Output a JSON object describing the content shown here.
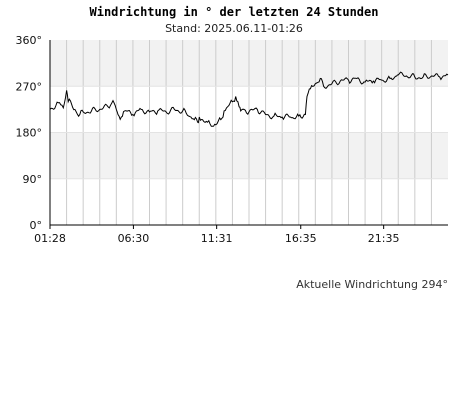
{
  "chart_data": {
    "type": "line",
    "title": "Windrichtung in ° der letzten 24 Stunden",
    "subtitle": "Stand: 2025.06.11-01:26",
    "xlabel": "",
    "ylabel": "",
    "ylim": [
      0,
      360
    ],
    "y_ticks": [
      0,
      90,
      180,
      270,
      360
    ],
    "y_tick_labels": [
      "0°",
      "90°",
      "180°",
      "270°",
      "360°"
    ],
    "x_tick_labels": [
      "01:28",
      "06:30",
      "11:31",
      "16:35",
      "21:35"
    ],
    "x_range_hours": [
      0,
      24
    ],
    "x_tick_hours": [
      0,
      5.03,
      10.05,
      15.12,
      20.12
    ],
    "grid": true,
    "series": [
      {
        "x_hours": [
          0,
          0.5,
          0.8,
          1.0,
          1.1,
          1.3,
          1.5,
          1.8,
          2.0,
          2.5,
          3.0,
          3.5,
          3.8,
          4.0,
          4.1,
          4.3,
          4.5,
          5.0,
          5.5,
          6.0,
          6.5,
          7.0,
          7.5,
          8.0,
          8.5,
          8.7,
          8.9,
          9.0,
          9.2,
          9.5,
          9.8,
          10.0,
          10.3,
          10.5,
          11.0,
          11.2,
          11.4,
          11.5,
          11.7,
          12.0,
          12.5,
          13.0,
          13.5,
          14.0,
          14.5,
          15.0,
          15.4,
          15.5,
          15.7,
          16.0,
          16.3,
          16.5,
          17.0,
          17.5,
          18.0,
          18.5,
          19.0,
          19.5,
          20.0,
          20.5,
          20.9,
          21.0,
          21.5,
          22.0,
          22.5,
          23.0,
          23.5,
          24.0
        ],
        "y": [
          225,
          238,
          228,
          262,
          240,
          235,
          225,
          215,
          220,
          222,
          225,
          230,
          242,
          225,
          215,
          210,
          222,
          215,
          225,
          220,
          222,
          220,
          225,
          222,
          210,
          205,
          200,
          210,
          205,
          200,
          192,
          195,
          205,
          222,
          240,
          250,
          230,
          222,
          225,
          220,
          225,
          215,
          212,
          210,
          210,
          212,
          215,
          250,
          265,
          275,
          285,
          270,
          275,
          280,
          282,
          285,
          278,
          280,
          282,
          285,
          290,
          292,
          290,
          288,
          288,
          290,
          288,
          292
        ]
      }
    ]
  },
  "current": {
    "label": "Aktuelle Windrichtung",
    "value": "294°"
  },
  "colors": {
    "band": "#f2f2f2",
    "grid": "#cccccc",
    "line": "#000000"
  }
}
